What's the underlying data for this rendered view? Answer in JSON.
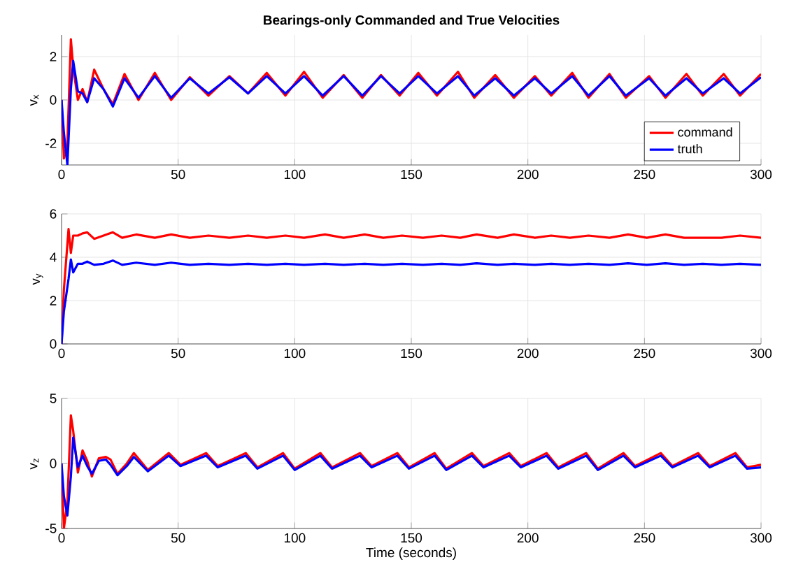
{
  "chart_data": [
    {
      "type": "line",
      "title": "Bearings-only Commanded and True Velocities",
      "ylabel": "v$_{x}$",
      "xlim": [
        0,
        300
      ],
      "ylim": [
        -3,
        3
      ],
      "xticks": [
        0,
        50,
        100,
        150,
        200,
        250,
        300
      ],
      "yticks": [
        -2,
        0,
        2
      ],
      "grid": true,
      "legend": "bottom right",
      "line_style": "solid",
      "x": [
        0,
        1,
        2.5,
        4,
        5,
        7,
        9,
        11,
        14,
        18,
        22,
        27,
        33,
        40,
        47,
        55,
        63,
        72,
        80,
        88,
        96,
        104,
        112,
        121,
        129,
        137,
        145,
        153,
        161,
        170,
        177,
        186,
        194,
        203,
        210,
        219,
        226,
        235,
        242,
        252,
        259,
        268,
        275,
        284,
        291,
        300
      ],
      "series": [
        {
          "name": "command",
          "color": "#ff0000",
          "values": [
            0,
            -2.7,
            -2.0,
            2.8,
            1.5,
            0.0,
            0.5,
            -0.1,
            1.4,
            0.5,
            -0.2,
            1.2,
            0.0,
            1.25,
            0.0,
            1.05,
            0.2,
            1.1,
            0.3,
            1.25,
            0.2,
            1.3,
            0.1,
            1.15,
            0.1,
            1.15,
            0.2,
            1.25,
            0.2,
            1.3,
            0.1,
            1.15,
            0.1,
            1.1,
            0.2,
            1.25,
            0.1,
            1.2,
            0.1,
            1.1,
            0.1,
            1.2,
            0.2,
            1.2,
            0.2,
            1.2
          ]
        },
        {
          "name": "truth",
          "color": "#0000ff",
          "values": [
            0,
            -1.5,
            -3,
            0.5,
            1.8,
            0.4,
            0.3,
            -0.1,
            1.0,
            0.5,
            -0.3,
            1.0,
            0.1,
            1.1,
            0.1,
            1.0,
            0.3,
            1.05,
            0.3,
            1.1,
            0.3,
            1.1,
            0.2,
            1.1,
            0.2,
            1.1,
            0.3,
            1.1,
            0.3,
            1.1,
            0.2,
            1.0,
            0.2,
            1.0,
            0.3,
            1.1,
            0.2,
            1.1,
            0.2,
            1.0,
            0.2,
            1.0,
            0.3,
            1.0,
            0.3,
            1.05
          ]
        }
      ]
    },
    {
      "type": "line",
      "ylabel": "v$_{y}$",
      "xlim": [
        0,
        300
      ],
      "ylim": [
        0,
        6
      ],
      "xticks": [
        0,
        50,
        100,
        150,
        200,
        250,
        300
      ],
      "yticks": [
        0,
        2,
        4,
        6
      ],
      "grid": true,
      "line_style": "solid",
      "x": [
        0,
        1,
        3,
        4,
        5,
        7,
        9,
        11,
        14,
        18,
        22,
        26,
        32,
        40,
        47,
        55,
        63,
        72,
        80,
        88,
        96,
        104,
        113,
        121,
        130,
        138,
        146,
        155,
        163,
        171,
        178,
        187,
        194,
        203,
        210,
        218,
        226,
        235,
        243,
        251,
        259,
        267,
        275,
        283,
        291,
        300
      ],
      "series": [
        {
          "color": "#ff0000",
          "values": [
            0,
            2.5,
            5.3,
            4.2,
            5.0,
            5.0,
            5.1,
            5.15,
            4.85,
            5.0,
            5.15,
            4.9,
            5.05,
            4.9,
            5.05,
            4.9,
            5.0,
            4.9,
            5.0,
            4.9,
            5.0,
            4.9,
            5.05,
            4.9,
            5.05,
            4.9,
            5.0,
            4.9,
            5.0,
            4.9,
            5.05,
            4.9,
            5.05,
            4.9,
            5.0,
            4.9,
            5.0,
            4.9,
            5.05,
            4.9,
            5.05,
            4.9,
            4.9,
            4.9,
            5.0,
            4.9
          ]
        },
        {
          "color": "#0000ff",
          "values": [
            0,
            1.5,
            3.0,
            3.9,
            3.3,
            3.7,
            3.7,
            3.8,
            3.65,
            3.7,
            3.85,
            3.65,
            3.75,
            3.65,
            3.75,
            3.65,
            3.7,
            3.65,
            3.7,
            3.65,
            3.7,
            3.65,
            3.7,
            3.65,
            3.7,
            3.65,
            3.7,
            3.65,
            3.7,
            3.65,
            3.72,
            3.65,
            3.7,
            3.65,
            3.7,
            3.65,
            3.7,
            3.65,
            3.72,
            3.65,
            3.72,
            3.65,
            3.7,
            3.65,
            3.7,
            3.65
          ]
        }
      ]
    },
    {
      "type": "line",
      "xlabel": "Time (seconds)",
      "ylabel": "v$_{z}$",
      "xlim": [
        0,
        300
      ],
      "ylim": [
        -5,
        5
      ],
      "xticks": [
        0,
        50,
        100,
        150,
        200,
        250,
        300
      ],
      "yticks": [
        -5,
        0,
        5
      ],
      "grid": true,
      "line_style": "solid",
      "x": [
        0,
        1,
        2.5,
        4,
        5,
        7,
        9,
        11,
        13,
        16,
        19,
        21,
        24,
        28,
        31,
        37,
        46,
        51,
        62,
        67,
        79,
        84,
        95,
        100,
        111,
        116,
        128,
        133,
        144,
        149,
        160,
        165,
        176,
        181,
        192,
        197,
        208,
        213,
        225,
        230,
        241,
        246,
        257,
        262,
        273,
        278,
        289,
        294,
        300
      ],
      "series": [
        {
          "color": "#ff0000",
          "values": [
            0,
            -5,
            -3,
            3.7,
            2.5,
            -0.7,
            1.0,
            0.2,
            -1.0,
            0.4,
            0.5,
            0.3,
            -0.8,
            0.0,
            0.8,
            -0.5,
            0.8,
            -0.1,
            0.8,
            -0.2,
            0.8,
            -0.3,
            0.8,
            -0.4,
            0.8,
            -0.3,
            0.8,
            -0.2,
            0.8,
            -0.3,
            0.8,
            -0.4,
            0.8,
            -0.2,
            0.8,
            -0.2,
            0.8,
            -0.3,
            0.8,
            -0.4,
            0.8,
            -0.2,
            0.8,
            -0.2,
            0.8,
            -0.2,
            0.8,
            -0.3,
            -0.1
          ]
        },
        {
          "color": "#0000ff",
          "values": [
            0,
            -2.5,
            -4.0,
            -1,
            2.0,
            -0.3,
            0.6,
            -0.2,
            -0.8,
            0.2,
            0.3,
            -0.1,
            -0.9,
            -0.2,
            0.5,
            -0.6,
            0.6,
            -0.2,
            0.6,
            -0.3,
            0.6,
            -0.4,
            0.6,
            -0.5,
            0.6,
            -0.4,
            0.6,
            -0.3,
            0.6,
            -0.4,
            0.6,
            -0.5,
            0.6,
            -0.3,
            0.6,
            -0.3,
            0.6,
            -0.4,
            0.6,
            -0.5,
            0.6,
            -0.3,
            0.6,
            -0.3,
            0.6,
            -0.3,
            0.6,
            -0.4,
            -0.3
          ]
        }
      ]
    }
  ]
}
